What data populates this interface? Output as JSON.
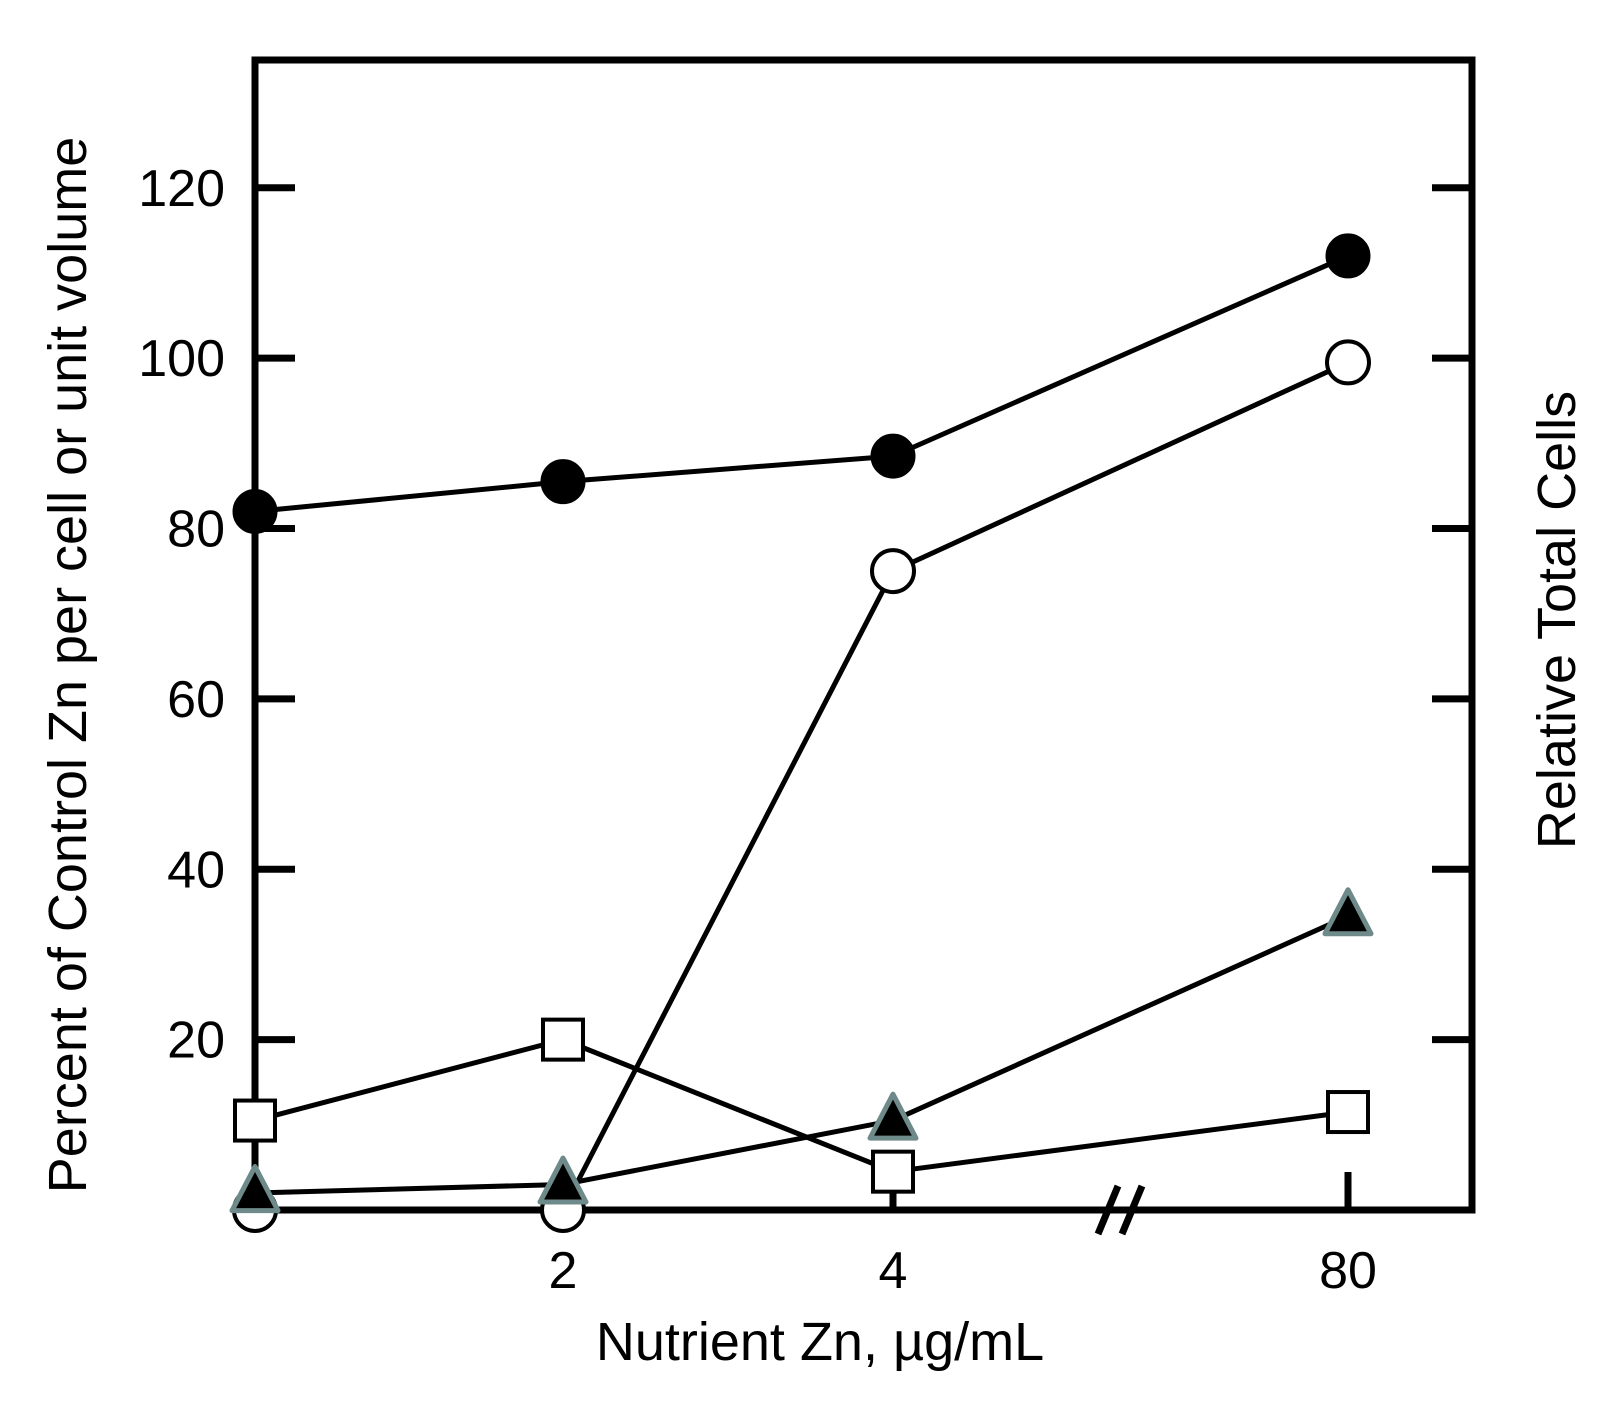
{
  "chart_data": {
    "type": "line",
    "xlabel": "Nutrient Zn, µg/mL",
    "ylabel": "Percent of Control Zn per cell or unit volume",
    "ylabel_right": "Relative Total Cells",
    "x_tick_labels": [
      "2",
      "4",
      "80"
    ],
    "y_tick_labels": [
      "20",
      "40",
      "60",
      "80",
      "100",
      "120"
    ],
    "y_ticks": [
      20,
      40,
      60,
      80,
      100,
      120
    ],
    "ylim": [
      0,
      135
    ],
    "x_categories": [
      "",
      "2",
      "4",
      "80"
    ],
    "axis_break": "between 4 and 80",
    "grid": false,
    "series": [
      {
        "marker": "filled-circle",
        "points": [
          {
            "x": "",
            "y": 82
          },
          {
            "x": "2",
            "y": 85.5
          },
          {
            "x": "4",
            "y": 88.5
          },
          {
            "x": "80",
            "y": 112
          }
        ]
      },
      {
        "marker": "open-circle",
        "points": [
          {
            "x": "",
            "y": 0
          },
          {
            "x": "2",
            "y": 0
          },
          {
            "x": "4",
            "y": 75
          },
          {
            "x": "80",
            "y": 99.5
          }
        ]
      },
      {
        "marker": "filled-triangle",
        "points": [
          {
            "x": "",
            "y": 2
          },
          {
            "x": "2",
            "y": 3
          },
          {
            "x": "4",
            "y": 10.5
          },
          {
            "x": "80",
            "y": 34.5
          }
        ]
      },
      {
        "marker": "open-square",
        "points": [
          {
            "x": "",
            "y": 10.5
          },
          {
            "x": "2",
            "y": 20
          },
          {
            "x": "4",
            "y": 4.5
          },
          {
            "x": "80",
            "y": 11.5
          }
        ]
      }
    ],
    "colors": {
      "line": "#000000",
      "marker_fill": "#000000",
      "triangle_outline": "#6f8a8a"
    }
  }
}
